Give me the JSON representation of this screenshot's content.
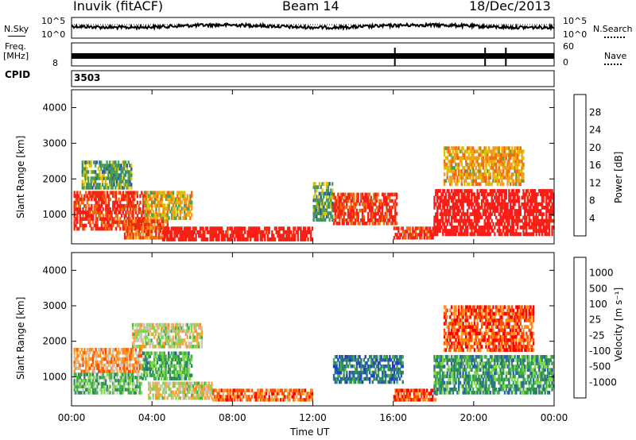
{
  "header": {
    "station": "Inuvik (fitACF)",
    "beam": "Beam 14",
    "date": "18/Dec/2013"
  },
  "sidepanel": {
    "nsky_label": "N.Sky",
    "nsearch_label": "N.Search",
    "noise_scale_top": "10^5",
    "noise_scale_bottom": "10^0",
    "freq_label": "Freq.",
    "freq_unit": "[MHz]",
    "freq_scale_bottom": "8",
    "nave_label": "Nave",
    "nave_scale_top": "60",
    "nave_scale_bottom": "0",
    "cpid_label": "CPID",
    "cpid_value": "3503"
  },
  "colors": {
    "power": [
      "#1f2fd9",
      "#2d5aa8",
      "#3f8f6a",
      "#4da24d",
      "#e0c000",
      "#f39a20",
      "#f26a10",
      "#e83010",
      "#ff1a1a"
    ],
    "velocity": [
      "#ff0000",
      "#ff5000",
      "#ff8c1a",
      "#f7a840",
      "#c8c8c0",
      "#7fd94b",
      "#43b04a",
      "#2e8a5a",
      "#2b63a8",
      "#1e3fc2"
    ]
  },
  "chart_data": [
    {
      "type": "heatmap",
      "panel": "power",
      "xlabel": "",
      "ylabel": "Slant Range [km]",
      "xlim": [
        0,
        24
      ],
      "ylim": [
        180,
        4500
      ],
      "xticks": [
        "00:00",
        "04:00",
        "08:00",
        "12:00",
        "16:00",
        "20:00",
        "00:00"
      ],
      "yticks": [
        "1000",
        "2000",
        "3000",
        "4000"
      ],
      "colorbar": {
        "label": "Power [dB]",
        "ticks": [
          "28",
          "24",
          "20",
          "16",
          "12",
          "8",
          "4"
        ],
        "range": [
          0,
          30
        ]
      },
      "bands": [
        {
          "x0": 0.1,
          "x1": 3.8,
          "y0": 550,
          "y1": 1650,
          "level": 0.85
        },
        {
          "x0": 3.6,
          "x1": 6.0,
          "y0": 850,
          "y1": 1650,
          "level": 0.55
        },
        {
          "x0": 2.6,
          "x1": 4.8,
          "y0": 300,
          "y1": 850,
          "level": 0.75
        },
        {
          "x0": 4.5,
          "x1": 12.0,
          "y0": 250,
          "y1": 650,
          "level": 0.95
        },
        {
          "x0": 12.0,
          "x1": 13.0,
          "y0": 800,
          "y1": 1900,
          "level": 0.35
        },
        {
          "x0": 13.0,
          "x1": 16.2,
          "y0": 700,
          "y1": 1600,
          "level": 0.85
        },
        {
          "x0": 16.0,
          "x1": 18.0,
          "y0": 300,
          "y1": 650,
          "level": 0.85
        },
        {
          "x0": 18.0,
          "x1": 24.0,
          "y0": 400,
          "y1": 1700,
          "level": 1.0
        },
        {
          "x0": 18.5,
          "x1": 22.5,
          "y0": 1800,
          "y1": 2900,
          "level": 0.6
        },
        {
          "x0": 0.5,
          "x1": 3.0,
          "y0": 1700,
          "y1": 2500,
          "level": 0.35
        }
      ]
    },
    {
      "type": "heatmap",
      "panel": "velocity",
      "xlabel": "Time UT",
      "ylabel": "Slant Range [km]",
      "xlim": [
        0,
        24
      ],
      "ylim": [
        180,
        4500
      ],
      "xticks": [
        "00:00",
        "04:00",
        "08:00",
        "12:00",
        "16:00",
        "20:00",
        "00:00"
      ],
      "yticks": [
        "1000",
        "2000",
        "3000",
        "4000"
      ],
      "colorbar": {
        "label": "Velocity [m s⁻¹]",
        "ticks": [
          "1000",
          "500",
          "100",
          "25",
          "-25",
          "-100",
          "-500",
          "-1000"
        ]
      },
      "bands": [
        {
          "x0": 0.1,
          "x1": 3.5,
          "y0": 1100,
          "y1": 1800,
          "level": 0.3
        },
        {
          "x0": 0.1,
          "x1": 3.5,
          "y0": 500,
          "y1": 1100,
          "level": 0.6
        },
        {
          "x0": 3.5,
          "x1": 6.0,
          "y0": 900,
          "y1": 1700,
          "level": 0.65
        },
        {
          "x0": 3.8,
          "x1": 7.0,
          "y0": 350,
          "y1": 850,
          "level": 0.45
        },
        {
          "x0": 7.0,
          "x1": 12.0,
          "y0": 300,
          "y1": 650,
          "level": 0.2
        },
        {
          "x0": 13.0,
          "x1": 16.5,
          "y0": 800,
          "y1": 1600,
          "level": 0.8
        },
        {
          "x0": 16.0,
          "x1": 18.2,
          "y0": 300,
          "y1": 650,
          "level": 0.15
        },
        {
          "x0": 18.0,
          "x1": 24.0,
          "y0": 500,
          "y1": 1600,
          "level": 0.7
        },
        {
          "x0": 18.5,
          "x1": 23.0,
          "y0": 1700,
          "y1": 3000,
          "level": 0.15
        },
        {
          "x0": 3.0,
          "x1": 6.5,
          "y0": 1800,
          "y1": 2500,
          "level": 0.45
        }
      ]
    }
  ]
}
